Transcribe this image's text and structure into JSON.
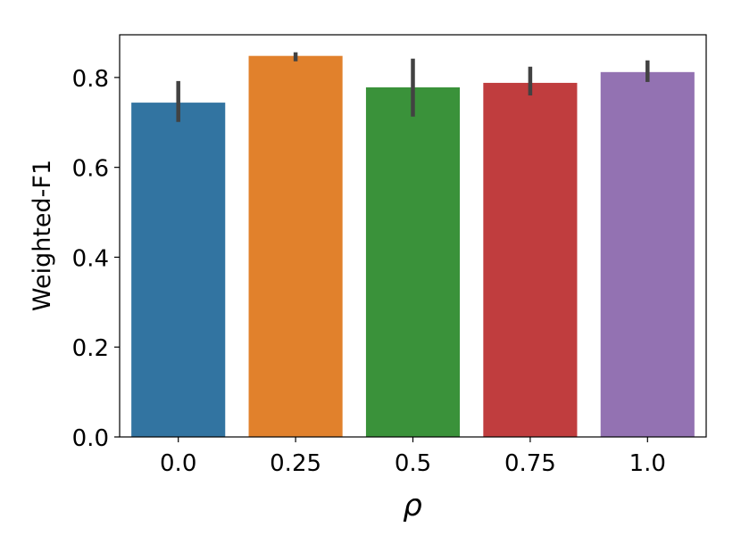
{
  "chart_data": {
    "type": "bar",
    "title": "",
    "xlabel": "ρ",
    "ylabel": "Weighted-F1",
    "categories": [
      "0.0",
      "0.25",
      "0.5",
      "0.75",
      "1.0"
    ],
    "values": [
      0.744,
      0.848,
      0.778,
      0.788,
      0.812
    ],
    "error_low": [
      0.701,
      0.836,
      0.713,
      0.76,
      0.79
    ],
    "error_high": [
      0.792,
      0.856,
      0.842,
      0.824,
      0.838
    ],
    "colors": [
      "#3274a1",
      "#e1812c",
      "#3a923a",
      "#c03d3e",
      "#9372b2"
    ],
    "error_color": "#424242",
    "ylim": [
      0,
      0.895
    ],
    "yticks": [
      0.0,
      0.2,
      0.4,
      0.6,
      0.8
    ],
    "ytick_labels": [
      "0.0",
      "0.2",
      "0.4",
      "0.6",
      "0.8"
    ],
    "grid": false,
    "legend": "none"
  }
}
